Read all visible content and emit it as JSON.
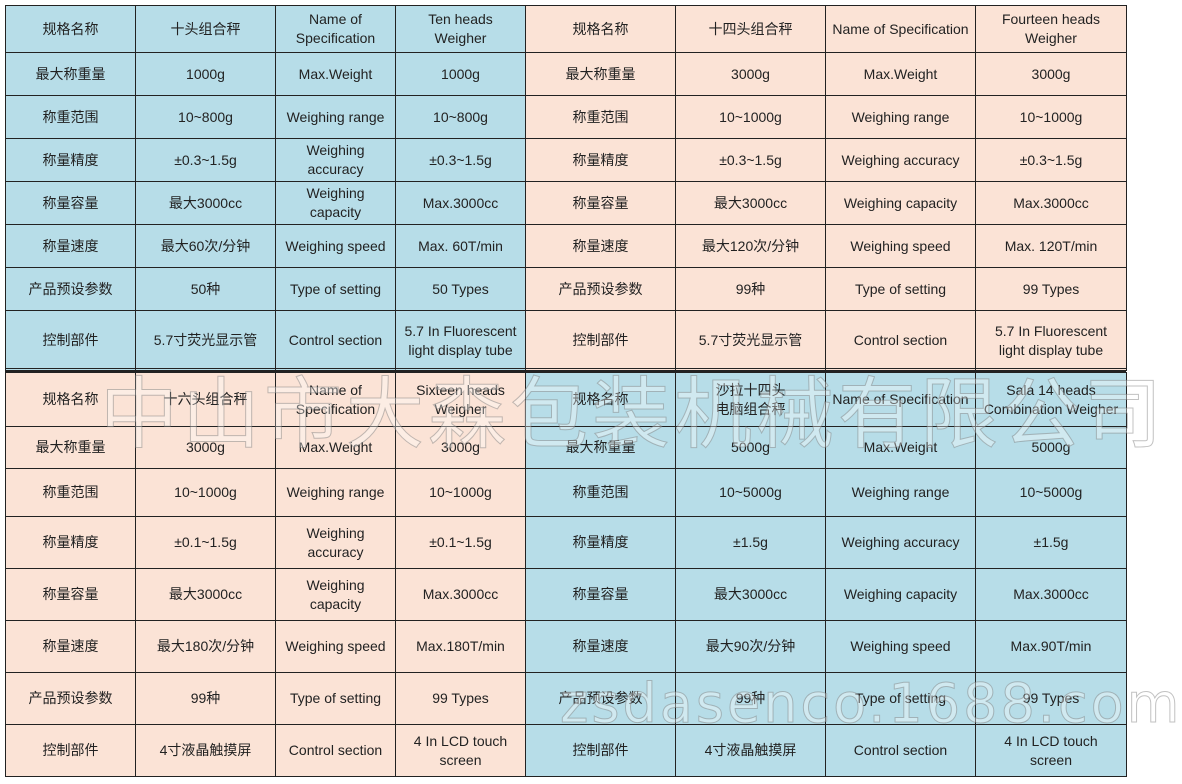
{
  "colors": {
    "blue": "#b7dde8",
    "peach": "#fbe3d6"
  },
  "watermarks": {
    "company": "中山市大森包装机械有限公司",
    "site": "zsdasenco.1688.com"
  },
  "quadrants": [
    {
      "color": "blue",
      "rows": [
        [
          "规格名称",
          "十头组合秤",
          "Name of\nSpecification",
          "Ten heads\nWeigher"
        ],
        [
          "最大称重量",
          "1000g",
          "Max.Weight",
          "1000g"
        ],
        [
          "称重范围",
          "10~800g",
          "Weighing range",
          "10~800g"
        ],
        [
          "称量精度",
          "±0.3~1.5g",
          "Weighing\naccuracy",
          "±0.3~1.5g"
        ],
        [
          "称量容量",
          "最大3000cc",
          "Weighing\ncapacity",
          "Max.3000cc"
        ],
        [
          "称量速度",
          "最大60次/分钟",
          "Weighing speed",
          "Max. 60T/min"
        ],
        [
          "产品预设参数",
          "50种",
          "Type of setting",
          "50 Types"
        ],
        [
          "控制部件",
          "5.7寸荧光显示管",
          "Control section",
          "5.7 In Fluorescent\nlight display tube"
        ]
      ]
    },
    {
      "color": "peach",
      "rows": [
        [
          "规格名称",
          "十四头组合秤",
          "Name of Specification",
          "Fourteen heads\nWeigher"
        ],
        [
          "最大称重量",
          "3000g",
          "Max.Weight",
          "3000g"
        ],
        [
          "称重范围",
          "10~1000g",
          "Weighing range",
          "10~1000g"
        ],
        [
          "称量精度",
          "±0.3~1.5g",
          "Weighing accuracy",
          "±0.3~1.5g"
        ],
        [
          "称量容量",
          "最大3000cc",
          "Weighing capacity",
          "Max.3000cc"
        ],
        [
          "称量速度",
          "最大120次/分钟",
          "Weighing speed",
          "Max. 120T/min"
        ],
        [
          "产品预设参数",
          "99种",
          "Type of setting",
          "99 Types"
        ],
        [
          "控制部件",
          "5.7寸荧光显示管",
          "Control section",
          "5.7 In Fluorescent\nlight display tube"
        ]
      ]
    },
    {
      "color": "peach",
      "rows": [
        [
          "规格名称",
          "十六头组合秤",
          "Name of\nSpecification",
          "Sixteen heads\nWeigher"
        ],
        [
          "最大称重量",
          "3000g",
          "Max.Weight",
          "3000g"
        ],
        [
          "称重范围",
          "10~1000g",
          "Weighing range",
          "10~1000g"
        ],
        [
          "称量精度",
          "±0.1~1.5g",
          "Weighing\naccuracy",
          "±0.1~1.5g"
        ],
        [
          "称量容量",
          "最大3000cc",
          "Weighing\ncapacity",
          "Max.3000cc"
        ],
        [
          "称量速度",
          "最大180次/分钟",
          "Weighing speed",
          "Max.180T/min"
        ],
        [
          "产品预设参数",
          "99种",
          "Type of setting",
          "99 Types"
        ],
        [
          "控制部件",
          "4寸液晶触摸屏",
          "Control section",
          "4 In LCD touch\nscreen"
        ]
      ]
    },
    {
      "color": "blue",
      "rows": [
        [
          "规格名称",
          "沙拉十四头\n电脑组合秤",
          "Name of Specification",
          "Sala 14 heads\nCombination Weigher"
        ],
        [
          "最大称重量",
          "5000g",
          "Max.Weight",
          "5000g"
        ],
        [
          "称重范围",
          "10~5000g",
          "Weighing range",
          "10~5000g"
        ],
        [
          "称量精度",
          "±1.5g",
          "Weighing accuracy",
          "±1.5g"
        ],
        [
          "称量容量",
          "最大3000cc",
          "Weighing capacity",
          "Max.3000cc"
        ],
        [
          "称量速度",
          "最大90次/分钟",
          "Weighing speed",
          "Max.90T/min"
        ],
        [
          "产品预设参数",
          "99种",
          "Type of setting",
          "99 Types"
        ],
        [
          "控制部件",
          "4寸液晶触摸屏",
          "Control section",
          "4 In LCD touch\nscreen"
        ]
      ]
    }
  ]
}
